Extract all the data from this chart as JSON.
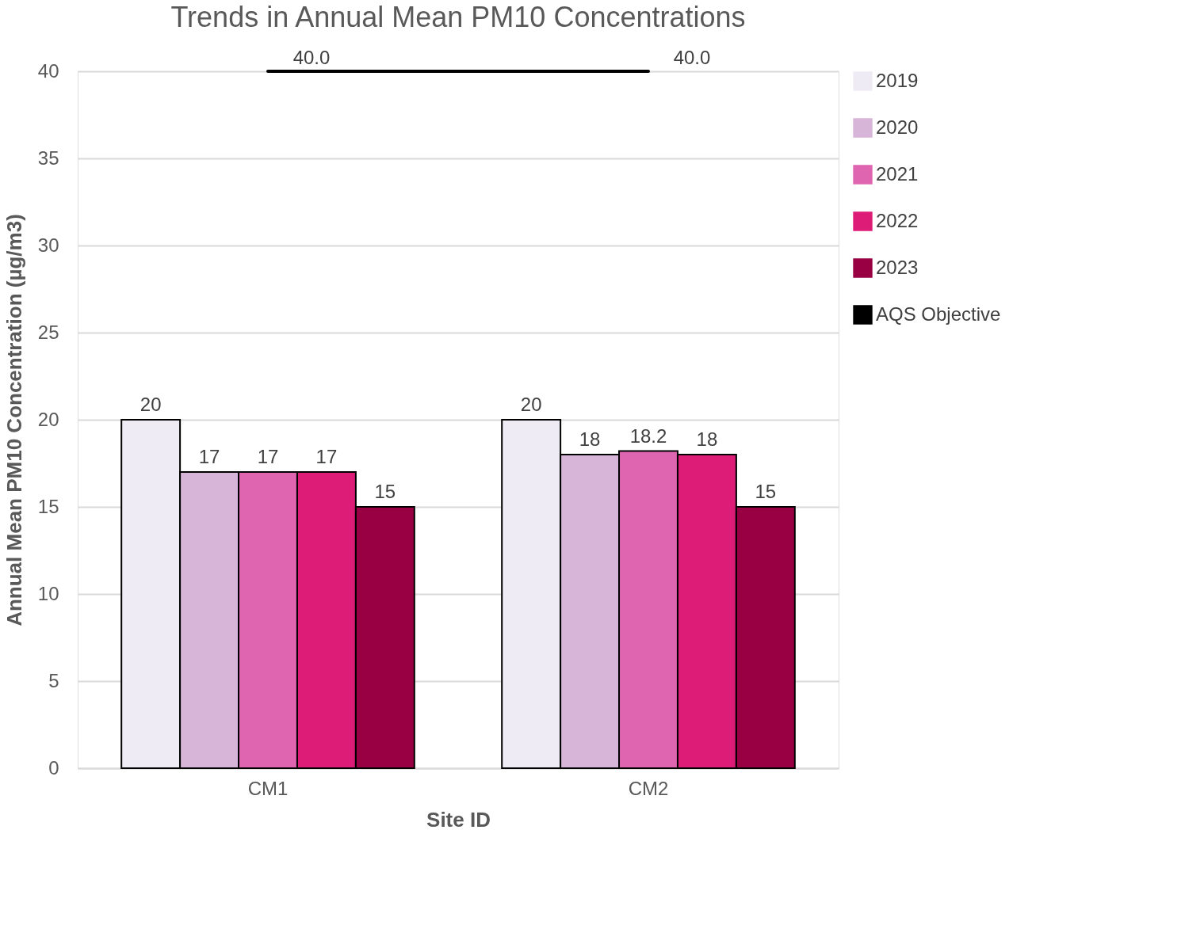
{
  "chart_data": {
    "type": "bar",
    "title": "Trends in Annual Mean PM10 Concentrations",
    "xlabel": "Site ID",
    "ylabel": "Annual Mean PM10 Concentration (µg/m3)",
    "categories": [
      "CM1",
      "CM2"
    ],
    "series": [
      {
        "name": "2019",
        "color": "#efebf4",
        "values": [
          20,
          20
        ]
      },
      {
        "name": "2020",
        "color": "#d7b5d8",
        "values": [
          17,
          18
        ]
      },
      {
        "name": "2021",
        "color": "#df65b0",
        "values": [
          17,
          18.2
        ]
      },
      {
        "name": "2022",
        "color": "#dd1c77",
        "values": [
          17,
          18
        ]
      },
      {
        "name": "2023",
        "color": "#980043",
        "values": [
          15,
          15
        ]
      },
      {
        "name": "AQS Objective",
        "type": "line",
        "color": "#000000",
        "values": [
          40,
          40
        ],
        "value_labels": [
          "40.0",
          "40.0"
        ]
      }
    ],
    "data_labels": true,
    "ylim": [
      0,
      40
    ],
    "yticks": [
      0,
      5,
      10,
      15,
      20,
      25,
      30,
      35,
      40
    ],
    "grid": "y",
    "legend": "right"
  }
}
